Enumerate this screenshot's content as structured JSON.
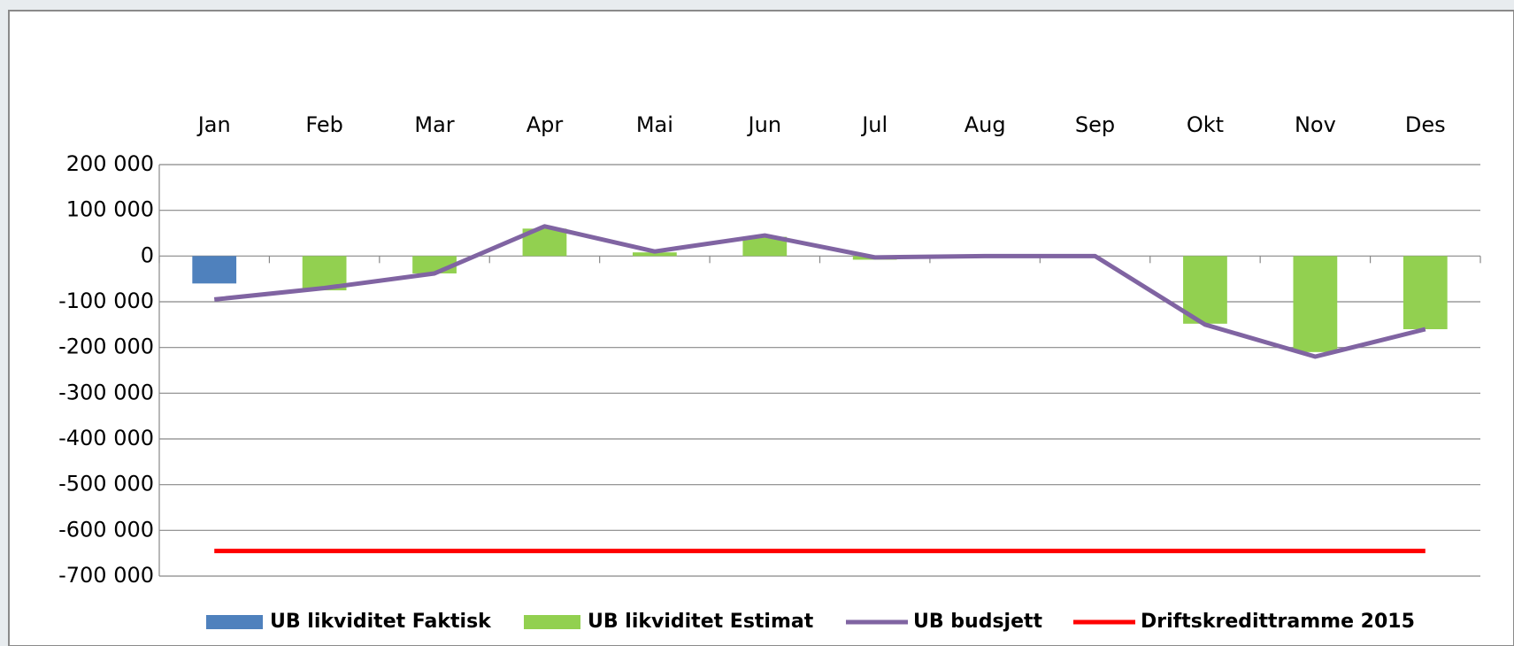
{
  "chart_data": {
    "type": "bar",
    "categories": [
      "Jan",
      "Feb",
      "Mar",
      "Apr",
      "Mai",
      "Jun",
      "Jul",
      "Aug",
      "Sep",
      "Okt",
      "Nov",
      "Des"
    ],
    "series": [
      {
        "name": "UB likviditet Faktisk",
        "type": "bar",
        "color": "#4f81bd",
        "values": [
          -60000,
          null,
          null,
          null,
          null,
          null,
          null,
          null,
          null,
          null,
          null,
          null
        ]
      },
      {
        "name": "UB likviditet Estimat",
        "type": "bar",
        "color": "#92d050",
        "values": [
          null,
          -75000,
          -38000,
          60000,
          8000,
          42000,
          -8000,
          null,
          null,
          -148000,
          -210000,
          -160000
        ]
      },
      {
        "name": "UB budsjett",
        "type": "line",
        "color": "#8064a2",
        "values": [
          -95000,
          -70000,
          -38000,
          65000,
          10000,
          45000,
          -3000,
          0,
          0,
          -150000,
          -220000,
          -160000
        ]
      },
      {
        "name": "Driftskredittramme 2015",
        "type": "line",
        "color": "#ff0000",
        "values": [
          -645000,
          -645000,
          -645000,
          -645000,
          -645000,
          -645000,
          -645000,
          -645000,
          -645000,
          -645000,
          -645000,
          -645000
        ]
      }
    ],
    "ylim": [
      -700000,
      200000
    ],
    "yticks": [
      {
        "value": -700000,
        "label": "-700 000"
      },
      {
        "value": -600000,
        "label": "-600 000"
      },
      {
        "value": -500000,
        "label": "-500 000"
      },
      {
        "value": -400000,
        "label": "-400 000"
      },
      {
        "value": -300000,
        "label": "-300 000"
      },
      {
        "value": -200000,
        "label": "-200 000"
      },
      {
        "value": -100000,
        "label": "-100 000"
      },
      {
        "value": 0,
        "label": "0"
      },
      {
        "value": 100000,
        "label": "100 000"
      },
      {
        "value": 200000,
        "label": "200 000"
      }
    ],
    "grid": true,
    "legend": "bottom"
  }
}
